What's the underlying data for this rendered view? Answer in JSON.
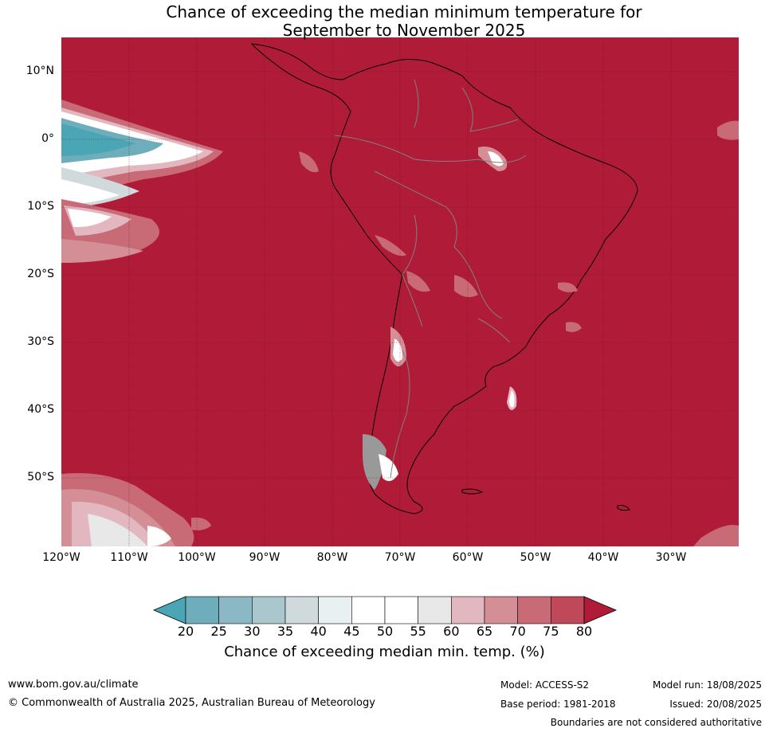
{
  "title_line1": "Chance of exceeding the median minimum temperature for",
  "title_line2": "September to November 2025",
  "lat_labels": [
    "10°N",
    "0°",
    "10°S",
    "20°S",
    "30°S",
    "40°S",
    "50°S"
  ],
  "lon_labels": [
    "120°W",
    "110°W",
    "100°W",
    "90°W",
    "80°W",
    "70°W",
    "60°W",
    "50°W",
    "40°W",
    "30°W"
  ],
  "colorbar": {
    "ticks": [
      "20",
      "25",
      "30",
      "35",
      "40",
      "45",
      "50",
      "55",
      "60",
      "65",
      "70",
      "75",
      "80"
    ],
    "colors": [
      "#4aa5b5",
      "#6eadbb",
      "#8ab8c5",
      "#a9c7cd",
      "#d0dadd",
      "#e9f0f2",
      "#ffffff",
      "#ffffff",
      "#e8e8e8",
      "#e3b7bf",
      "#d38e96",
      "#c86b77",
      "#bf4859"
    ],
    "under_color": "#4aa5b5",
    "over_color": "#b01c38",
    "label": "Chance of exceeding median min. temp. (%)"
  },
  "map_colors": {
    "ocean_land_fill": "#b01c38",
    "coast": "#000000",
    "borders": "#808080",
    "grid": "#5a1020"
  },
  "footer": {
    "url": "www.bom.gov.au/climate",
    "copyright": "© Commonwealth of Australia 2025, Australian Bureau of Meteorology",
    "model": "Model: ACCESS-S2",
    "base_period": "Base period: 1981-2018",
    "model_run": "Model run: 18/08/2025",
    "issued": "Issued: 20/08/2025",
    "disclaimer": "Boundaries are not considered authoritative"
  }
}
